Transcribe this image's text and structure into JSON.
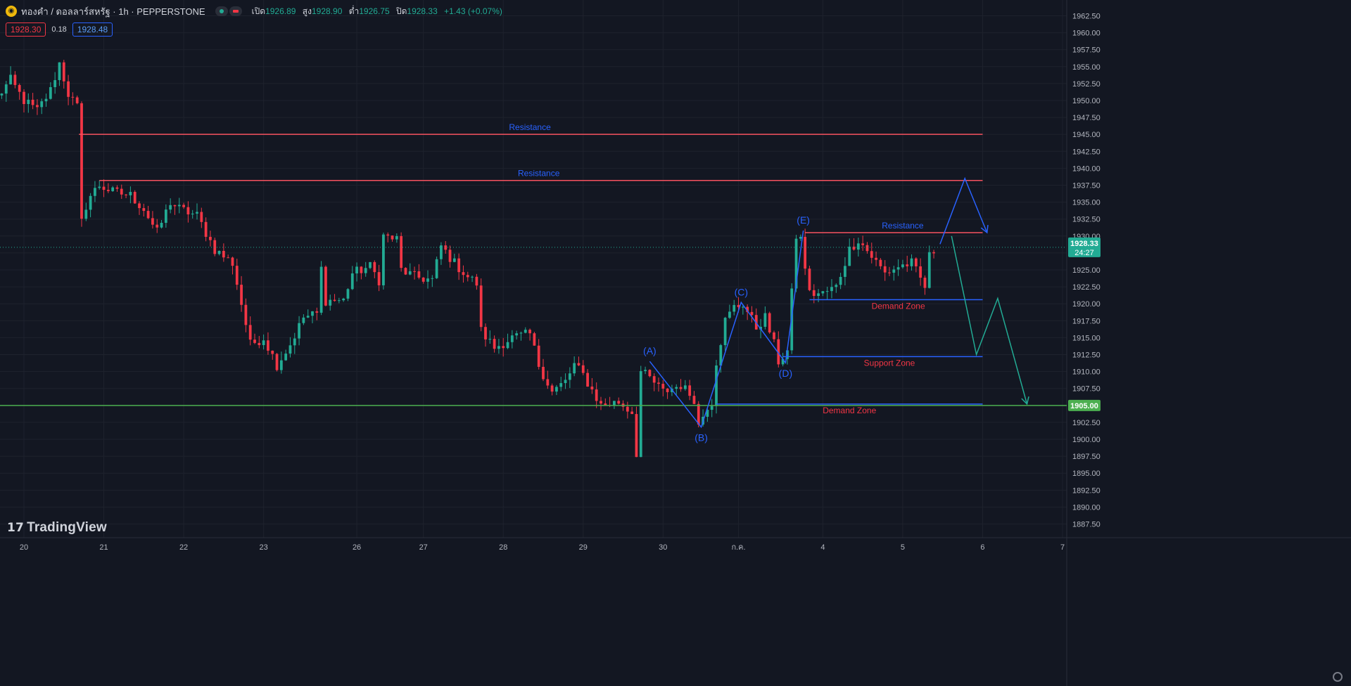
{
  "header": {
    "logo_icon": "gold-coin-icon",
    "symbol_title": "ทองคำ / ดอลลาร์สหรัฐ · 1h · PEPPERSTONE",
    "market_status_icon": "market-open-dot-icon",
    "flag_icon": "red-flag-icon",
    "ohlc": {
      "open_label": "เปิด",
      "open": "1926.89",
      "high_label": "สูง",
      "high": "1928.90",
      "low_label": "ต่ำ",
      "low": "1926.75",
      "close_label": "ปิด",
      "close": "1928.33",
      "change": "+1.43 (+0.07%)"
    },
    "sell_price": "1928.30",
    "spread": "0.18",
    "buy_price": "1928.48"
  },
  "brand": "TradingView",
  "colors": {
    "background": "#131722",
    "up": "#22ab94",
    "down": "#f23645",
    "line_red": "#f7525f",
    "line_blue": "#2962ff",
    "line_green": "#4caf50",
    "label_blue": "#2962ff",
    "label_red": "#f23645"
  },
  "chart_data": {
    "type": "candlestick",
    "title": "ทองคำ / ดอลลาร์สหรัฐ · 1h · PEPPERSTONE",
    "ylim": [
      1886,
      1964
    ],
    "y_ticks": [
      "1962.50",
      "1960.00",
      "1957.50",
      "1955.00",
      "1952.50",
      "1950.00",
      "1947.50",
      "1945.00",
      "1942.50",
      "1940.00",
      "1937.50",
      "1935.00",
      "1932.50",
      "1930.00",
      "1927.50",
      "1925.00",
      "1922.50",
      "1920.00",
      "1917.50",
      "1915.00",
      "1912.50",
      "1910.00",
      "1907.50",
      "1905.00",
      "1902.50",
      "1900.00",
      "1897.50",
      "1895.00",
      "1892.50",
      "1890.00",
      "1887.50"
    ],
    "x_ticks": [
      {
        "label": "20",
        "x": 0.3
      },
      {
        "label": "21",
        "x": 1.2
      },
      {
        "label": "22",
        "x": 2.1
      },
      {
        "label": "23",
        "x": 3.0
      },
      {
        "label": "26",
        "x": 4.05
      },
      {
        "label": "27",
        "x": 4.8
      },
      {
        "label": "28",
        "x": 5.7
      },
      {
        "label": "29",
        "x": 6.6
      },
      {
        "label": "30",
        "x": 7.5
      },
      {
        "label": "ก.ค.",
        "x": 8.35
      },
      {
        "label": "4",
        "x": 9.3
      },
      {
        "label": "5",
        "x": 10.2
      },
      {
        "label": "6",
        "x": 11.1
      },
      {
        "label": "7",
        "x": 12.0
      }
    ],
    "last_price": {
      "value": "1928.33",
      "countdown": "24:27",
      "y": 1928.33
    },
    "key_level": {
      "value": "1905.00",
      "y": 1905.0
    },
    "close_series_anchors": [
      [
        0.0,
        1950.5
      ],
      [
        0.15,
        1953.0
      ],
      [
        0.3,
        1950.0
      ],
      [
        0.45,
        1948.5
      ],
      [
        0.6,
        1951.5
      ],
      [
        0.7,
        1955.5
      ],
      [
        0.8,
        1951.0
      ],
      [
        0.9,
        1949.0
      ],
      [
        0.92,
        1945.0
      ],
      [
        0.95,
        1932.0
      ],
      [
        1.02,
        1935.5
      ],
      [
        1.15,
        1937.5
      ],
      [
        1.3,
        1936.5
      ],
      [
        1.5,
        1936.0
      ],
      [
        1.65,
        1934.0
      ],
      [
        1.8,
        1930.5
      ],
      [
        1.95,
        1935.0
      ],
      [
        2.05,
        1934.0
      ],
      [
        2.25,
        1933.0
      ],
      [
        2.45,
        1928.0
      ],
      [
        2.65,
        1926.0
      ],
      [
        2.75,
        1920.0
      ],
      [
        2.85,
        1914.0
      ],
      [
        3.0,
        1915.0
      ],
      [
        3.15,
        1911.0
      ],
      [
        3.3,
        1914.0
      ],
      [
        3.45,
        1918.0
      ],
      [
        3.6,
        1918.5
      ],
      [
        3.63,
        1927.0
      ],
      [
        3.7,
        1920.5
      ],
      [
        3.9,
        1920.5
      ],
      [
        4.0,
        1924.5
      ],
      [
        4.2,
        1925.5
      ],
      [
        4.3,
        1923.5
      ],
      [
        4.35,
        1930.0
      ],
      [
        4.5,
        1929.5
      ],
      [
        4.55,
        1925.0
      ],
      [
        4.7,
        1924.0
      ],
      [
        4.9,
        1923.5
      ],
      [
        5.0,
        1928.5
      ],
      [
        5.15,
        1926.0
      ],
      [
        5.3,
        1924.0
      ],
      [
        5.4,
        1923.0
      ],
      [
        5.45,
        1916.0
      ],
      [
        5.6,
        1913.5
      ],
      [
        5.8,
        1915.0
      ],
      [
        6.0,
        1915.5
      ],
      [
        6.1,
        1911.0
      ],
      [
        6.25,
        1907.0
      ],
      [
        6.4,
        1908.5
      ],
      [
        6.5,
        1911.0
      ],
      [
        6.6,
        1909.5
      ],
      [
        6.8,
        1905.0
      ],
      [
        7.0,
        1905.5
      ],
      [
        7.15,
        1904.0
      ],
      [
        7.2,
        1898.0
      ],
      [
        7.25,
        1910.0
      ],
      [
        7.35,
        1909.0
      ],
      [
        7.5,
        1907.0
      ],
      [
        7.7,
        1908.0
      ],
      [
        7.85,
        1906.0
      ],
      [
        7.9,
        1902.0
      ],
      [
        8.0,
        1905.0
      ],
      [
        8.05,
        1905.5
      ],
      [
        8.1,
        1911.5
      ],
      [
        8.2,
        1917.5
      ],
      [
        8.3,
        1919.5
      ],
      [
        8.4,
        1920.0
      ],
      [
        8.55,
        1916.5
      ],
      [
        8.65,
        1918.0
      ],
      [
        8.75,
        1914.0
      ],
      [
        8.8,
        1911.5
      ],
      [
        8.9,
        1913.0
      ],
      [
        9.0,
        1930.0
      ],
      [
        9.05,
        1929.5
      ],
      [
        9.15,
        1921.5
      ],
      [
        9.3,
        1921.5
      ],
      [
        9.45,
        1922.5
      ],
      [
        9.6,
        1928.0
      ],
      [
        9.7,
        1929.5
      ],
      [
        9.85,
        1927.0
      ],
      [
        10.0,
        1924.5
      ],
      [
        10.15,
        1925.5
      ],
      [
        10.3,
        1926.0
      ],
      [
        10.45,
        1922.5
      ],
      [
        10.5,
        1927.0
      ],
      [
        10.58,
        1928.3
      ]
    ],
    "horizontal_levels": [
      {
        "label": "Resistance",
        "y": 1945.0,
        "x_start": 0.92,
        "x_end": 11.1,
        "label_x": 6.0,
        "color": "#f7525f",
        "label_color": "#2962ff",
        "label_pos": "above"
      },
      {
        "label": "Resistance",
        "y": 1938.2,
        "x_start": 1.15,
        "x_end": 11.1,
        "label_x": 6.1,
        "color": "#f7525f",
        "label_color": "#2962ff",
        "label_pos": "above"
      },
      {
        "label": "Resistance",
        "y": 1930.5,
        "x_start": 9.1,
        "x_end": 11.1,
        "label_x": 10.2,
        "color": "#f7525f",
        "label_color": "#2962ff",
        "label_pos": "above"
      },
      {
        "label": "Demand Zone",
        "y": 1920.6,
        "x_start": 9.15,
        "x_end": 11.1,
        "label_x": 10.15,
        "color": "#2962ff",
        "label_color": "#f23645",
        "label_pos": "below"
      },
      {
        "label": "Support Zone",
        "y": 1912.2,
        "x_start": 8.85,
        "x_end": 11.1,
        "label_x": 10.05,
        "color": "#2962ff",
        "label_color": "#f23645",
        "label_pos": "below"
      },
      {
        "label": "Demand Zone",
        "y": 1905.2,
        "x_start": 8.1,
        "x_end": 11.1,
        "label_x": 9.6,
        "color": "#2962ff",
        "label_color": "#f23645",
        "label_pos": "below"
      }
    ],
    "key_line": {
      "y": 1905.0,
      "color": "#4caf50"
    },
    "wave_points": [
      {
        "label": "(A)",
        "x": 7.35,
        "y": 1911.5,
        "label_pos": "above"
      },
      {
        "label": "(B)",
        "x": 7.93,
        "y": 1901.8,
        "label_pos": "below"
      },
      {
        "label": "(C)",
        "x": 8.38,
        "y": 1920.2,
        "label_pos": "above"
      },
      {
        "label": "(D)",
        "x": 8.88,
        "y": 1911.3,
        "label_pos": "below"
      },
      {
        "label": "(E)",
        "x": 9.08,
        "y": 1930.8,
        "label_pos": "above"
      }
    ],
    "projection_blue": [
      [
        10.62,
        1928.8
      ],
      [
        10.9,
        1938.5
      ],
      [
        11.15,
        1930.5
      ]
    ],
    "projection_green": [
      [
        10.75,
        1930.0
      ],
      [
        11.03,
        1912.5
      ],
      [
        11.27,
        1920.8
      ],
      [
        11.6,
        1905.2
      ]
    ],
    "grid": true,
    "legend": "none"
  }
}
